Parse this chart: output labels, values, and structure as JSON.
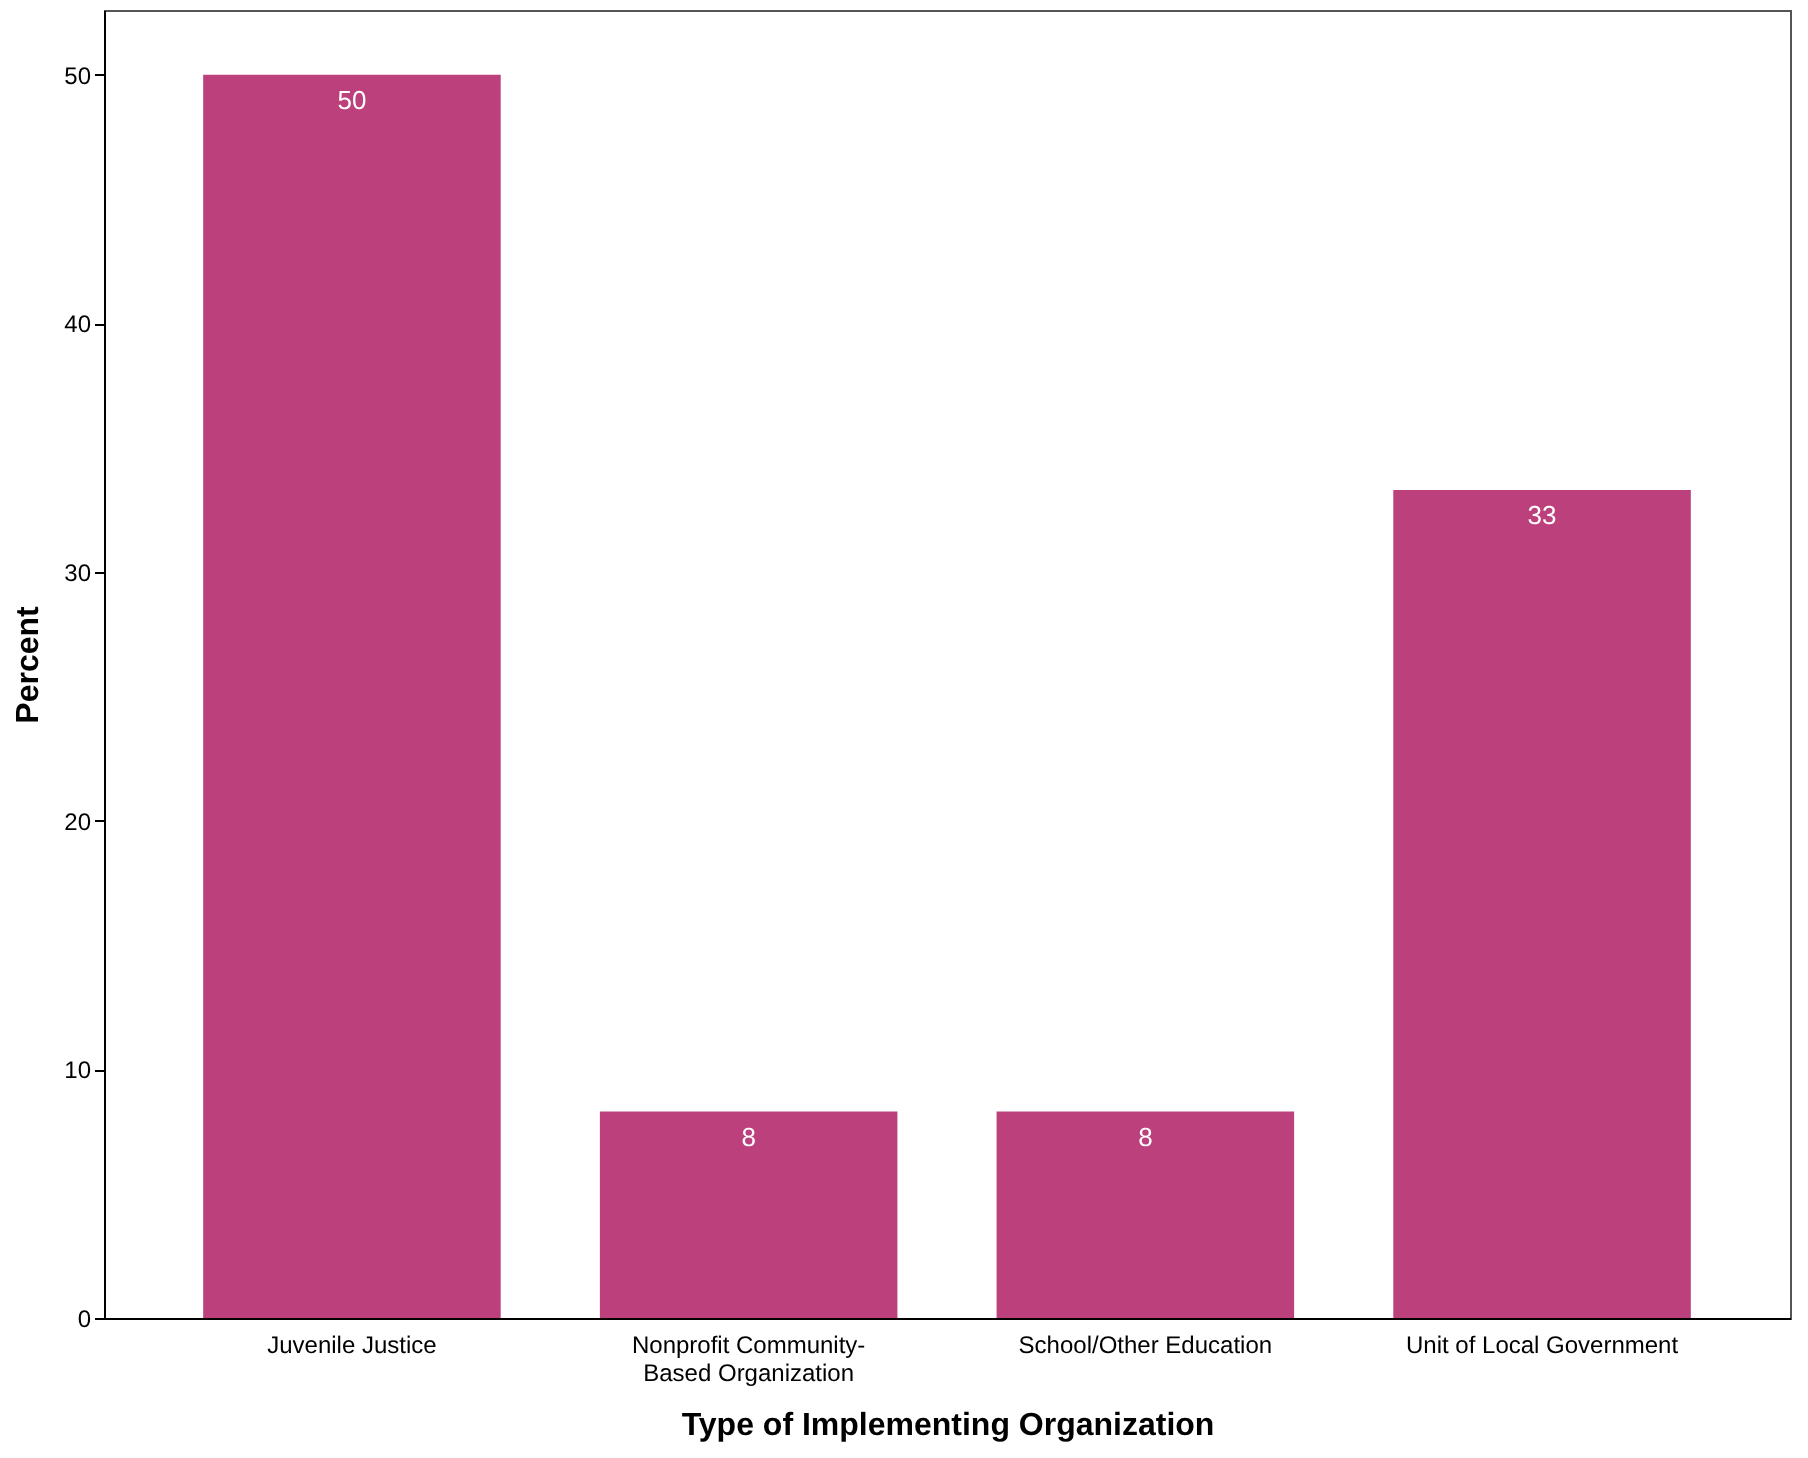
{
  "chart_data": {
    "type": "bar",
    "xlabel": "Type of Implementing Organization",
    "ylabel": "Percent",
    "categories": [
      "Juvenile Justice",
      "Nonprofit Community-Based Organization",
      "School/Other Education",
      "Unit of Local Government"
    ],
    "values": [
      50,
      8.3,
      8.3,
      33.3
    ],
    "value_labels": [
      "50",
      "8",
      "8",
      "33"
    ],
    "color": "#bc407c",
    "ylim": [
      0,
      52.6
    ],
    "yticks": [
      0,
      10,
      20,
      30,
      40,
      50
    ],
    "grid": false
  }
}
